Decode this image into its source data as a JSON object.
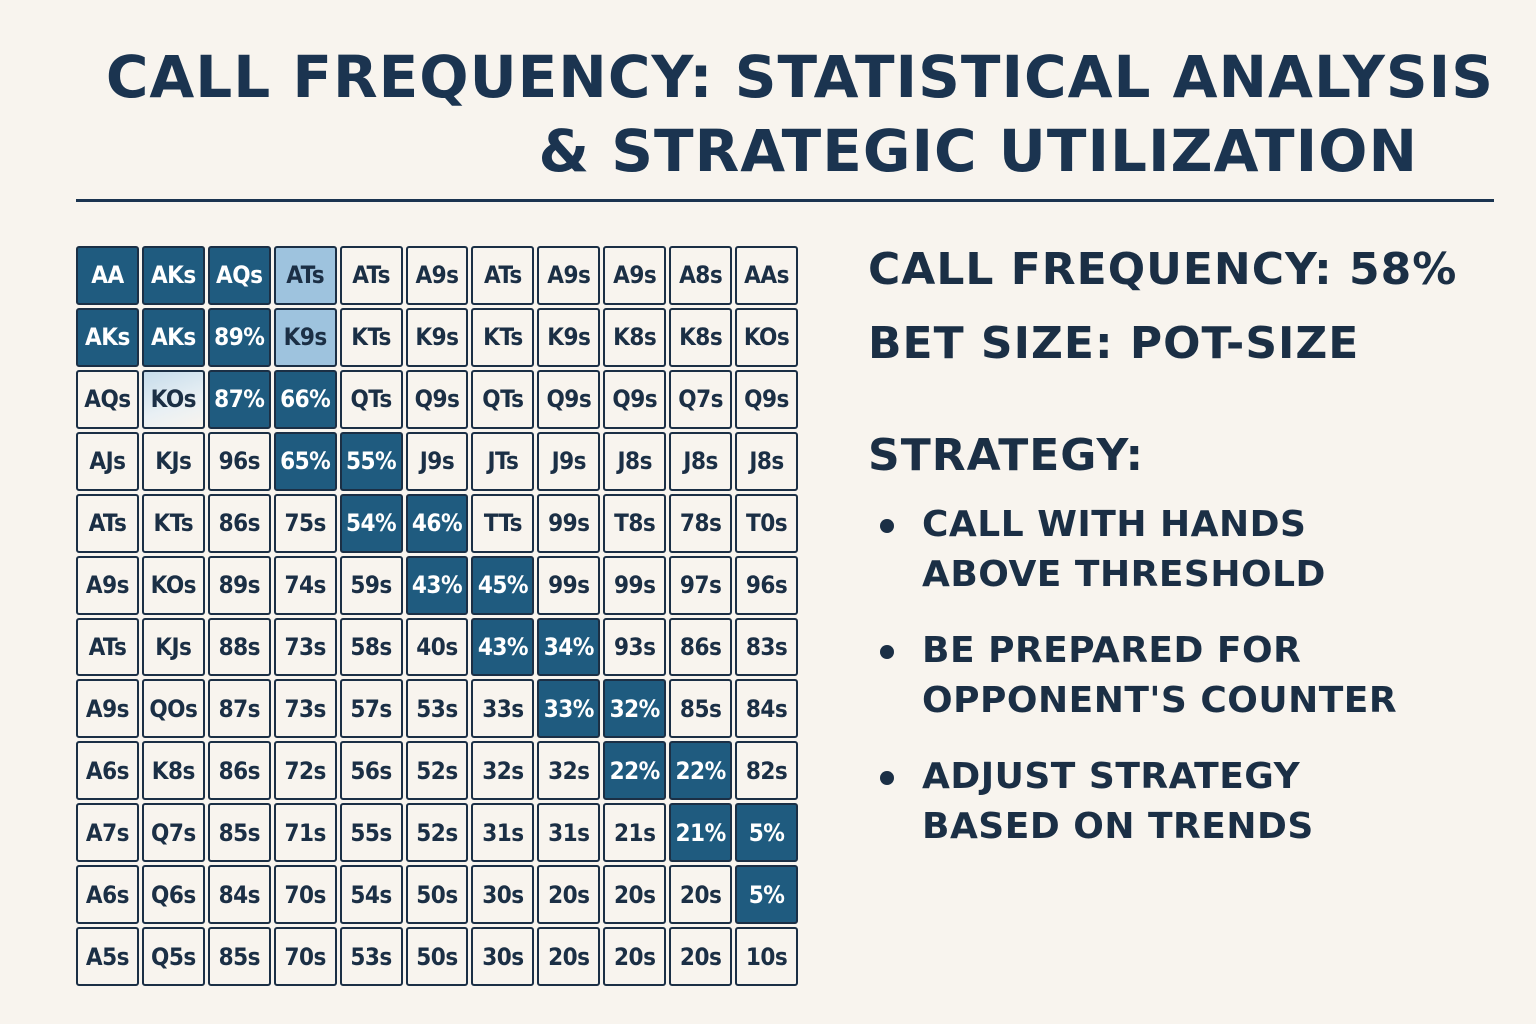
{
  "title": {
    "line1": "CALL FREQUENCY: STATISTICAL ANALYSIS",
    "line2": "& STRATEGIC UTILIZATION"
  },
  "grid": {
    "rows": [
      [
        "AA",
        "AKs",
        "AQs",
        "ATs",
        "ATs",
        "A9s",
        "ATs",
        "A9s",
        "A9s",
        "A8s",
        "AAs"
      ],
      [
        "AKs",
        "AKs",
        "89%",
        "K9s",
        "KTs",
        "K9s",
        "KTs",
        "K9s",
        "K8s",
        "K8s",
        "KOs"
      ],
      [
        "AQs",
        "KOs",
        "87%",
        "66%",
        "QTs",
        "Q9s",
        "QTs",
        "Q9s",
        "Q9s",
        "Q7s",
        "Q9s"
      ],
      [
        "AJs",
        "KJs",
        "96s",
        "65%",
        "55%",
        "J9s",
        "JTs",
        "J9s",
        "J8s",
        "J8s",
        "J8s"
      ],
      [
        "ATs",
        "KTs",
        "86s",
        "75s",
        "54%",
        "46%",
        "TTs",
        "99s",
        "T8s",
        "78s",
        "T0s"
      ],
      [
        "A9s",
        "KOs",
        "89s",
        "74s",
        "59s",
        "43%",
        "45%",
        "99s",
        "99s",
        "97s",
        "96s"
      ],
      [
        "ATs",
        "KJs",
        "88s",
        "73s",
        "58s",
        "40s",
        "43%",
        "34%",
        "93s",
        "86s",
        "83s"
      ],
      [
        "A9s",
        "QOs",
        "87s",
        "73s",
        "57s",
        "53s",
        "33s",
        "33%",
        "32%",
        "85s",
        "84s"
      ],
      [
        "A6s",
        "K8s",
        "86s",
        "72s",
        "56s",
        "52s",
        "32s",
        "32s",
        "22%",
        "22%",
        "82s"
      ],
      [
        "A7s",
        "Q7s",
        "85s",
        "71s",
        "55s",
        "52s",
        "31s",
        "31s",
        "21s",
        "21%",
        "5%"
      ],
      [
        "A6s",
        "Q6s",
        "84s",
        "70s",
        "54s",
        "50s",
        "30s",
        "20s",
        "20s",
        "20s",
        "5%"
      ],
      [
        "A5s",
        "Q5s",
        "85s",
        "70s",
        "53s",
        "50s",
        "30s",
        "20s",
        "20s",
        "20s",
        "10s"
      ]
    ],
    "highlight": {
      "dark": [
        [
          0,
          0
        ],
        [
          0,
          1
        ],
        [
          0,
          2
        ],
        [
          1,
          0
        ],
        [
          1,
          1
        ],
        [
          1,
          2
        ],
        [
          2,
          2
        ],
        [
          2,
          3
        ],
        [
          3,
          3
        ],
        [
          3,
          4
        ],
        [
          4,
          4
        ],
        [
          4,
          5
        ],
        [
          5,
          5
        ],
        [
          5,
          6
        ],
        [
          6,
          6
        ],
        [
          6,
          7
        ],
        [
          7,
          7
        ],
        [
          7,
          8
        ],
        [
          8,
          8
        ],
        [
          8,
          9
        ],
        [
          9,
          9
        ],
        [
          9,
          10
        ],
        [
          10,
          10
        ]
      ],
      "light": [
        [
          0,
          3
        ],
        [
          1,
          3
        ]
      ],
      "fade": [
        [
          2,
          1
        ]
      ]
    },
    "colors": {
      "dark": "#1f5b7f",
      "light": "#9ec3de",
      "cell": "#f8f4ee",
      "border": "#1b2f45"
    }
  },
  "stats": {
    "call_frequency": "CALL FREQUENCY: 58%",
    "bet_size": "BET SIZE: POT-SIZE"
  },
  "strategy": {
    "heading": "STRATEGY:",
    "bullets": [
      [
        "CALL WITH HANDS",
        "ABOVE THRESHOLD"
      ],
      [
        "BE PREPARED FOR",
        "OPPONENT'S COUNTER"
      ],
      [
        "ADJUST STRATEGY",
        "BASED ON TRENDS"
      ]
    ]
  }
}
